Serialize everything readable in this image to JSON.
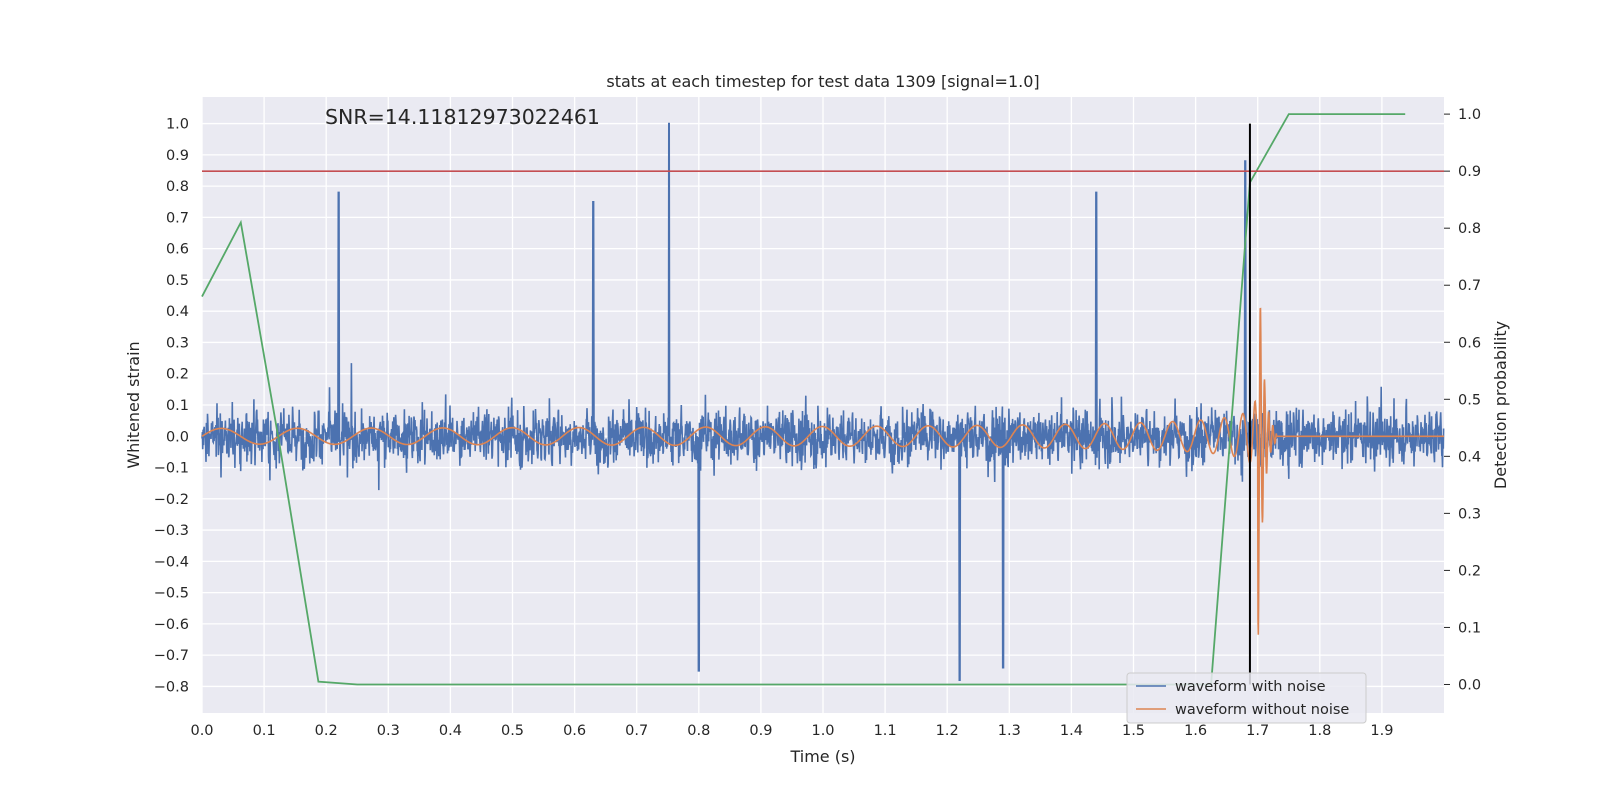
{
  "chart_data": {
    "type": "line",
    "title": "stats at each timestep for test data 1309 [signal=1.0]",
    "xlabel": "Time (s)",
    "ylabel": "Whitened strain",
    "y2label": "Detection probability",
    "annotation": "SNR=14.11812973022461",
    "xlim": [
      0.0,
      2.0
    ],
    "ylim": [
      -0.885,
      1.085
    ],
    "y2lim": [
      -0.05,
      1.03
    ],
    "xticks": [
      "0.0",
      "0.1",
      "0.2",
      "0.3",
      "0.4",
      "0.5",
      "0.6",
      "0.7",
      "0.8",
      "0.9",
      "1.0",
      "1.1",
      "1.2",
      "1.3",
      "1.4",
      "1.5",
      "1.6",
      "1.7",
      "1.8",
      "1.9"
    ],
    "yticks": [
      "1.0",
      "0.9",
      "0.8",
      "0.7",
      "0.6",
      "0.5",
      "0.4",
      "0.3",
      "0.2",
      "0.1",
      "0.0",
      "−0.1",
      "−0.2",
      "−0.3",
      "−0.4",
      "−0.5",
      "−0.6",
      "−0.7",
      "−0.8"
    ],
    "y2ticks": [
      "1.0",
      "0.9",
      "0.8",
      "0.7",
      "0.6",
      "0.5",
      "0.4",
      "0.3",
      "0.2",
      "0.1",
      "0.0"
    ],
    "grid": true,
    "legend_position": "lower-right",
    "series": [
      {
        "name": "waveform with noise",
        "axis": "left",
        "color": "#4c72b0",
        "sampling": "dense noisy trace, n=4096 samples over 0-2 s",
        "y_range": [
          -0.78,
          1.0
        ],
        "notable_peaks": [
          [
            0.752,
            1.0
          ],
          [
            0.22,
            0.78
          ],
          [
            0.63,
            0.75
          ],
          [
            1.44,
            0.78
          ],
          [
            1.68,
            0.88
          ],
          [
            1.22,
            -0.78
          ],
          [
            1.29,
            -0.74
          ],
          [
            0.8,
            -0.75
          ]
        ]
      },
      {
        "name": "waveform without noise",
        "axis": "left",
        "color": "#dd8452",
        "chirp": {
          "t_start": 0.0,
          "t_merger": 1.7,
          "f_start": 8,
          "f_merger": 150,
          "amp_start": 0.025,
          "amp_merger": 0.72,
          "ringdown_end": 1.73
        }
      },
      {
        "axis": "right",
        "color": "#55a868",
        "x": [
          0.0,
          0.0625,
          0.125,
          0.1875,
          0.25,
          0.3125,
          0.375,
          0.4375,
          0.5,
          0.5625,
          0.625,
          0.6875,
          0.75,
          0.8125,
          0.875,
          0.9375,
          1.0,
          1.0625,
          1.125,
          1.1875,
          1.25,
          1.3125,
          1.375,
          1.4375,
          1.5,
          1.5625,
          1.625,
          1.6875,
          1.75,
          1.8125,
          1.875,
          1.9375
        ],
        "values": [
          0.68,
          0.81,
          0.42,
          0.005,
          0.0,
          0.0,
          0.0,
          0.0,
          0.0,
          0.0,
          0.0,
          0.0,
          0.0,
          0.0,
          0.0,
          0.0,
          0.0,
          0.0,
          0.0,
          0.0,
          0.0,
          0.0,
          0.0,
          0.0,
          0.0,
          0.0,
          0.0,
          0.88,
          1.0,
          1.0,
          1.0,
          1.0
        ]
      }
    ],
    "threshold_right": {
      "value": 0.9,
      "color": "#c44e52"
    },
    "vline": {
      "x": 1.6875,
      "color": "#000000"
    }
  }
}
